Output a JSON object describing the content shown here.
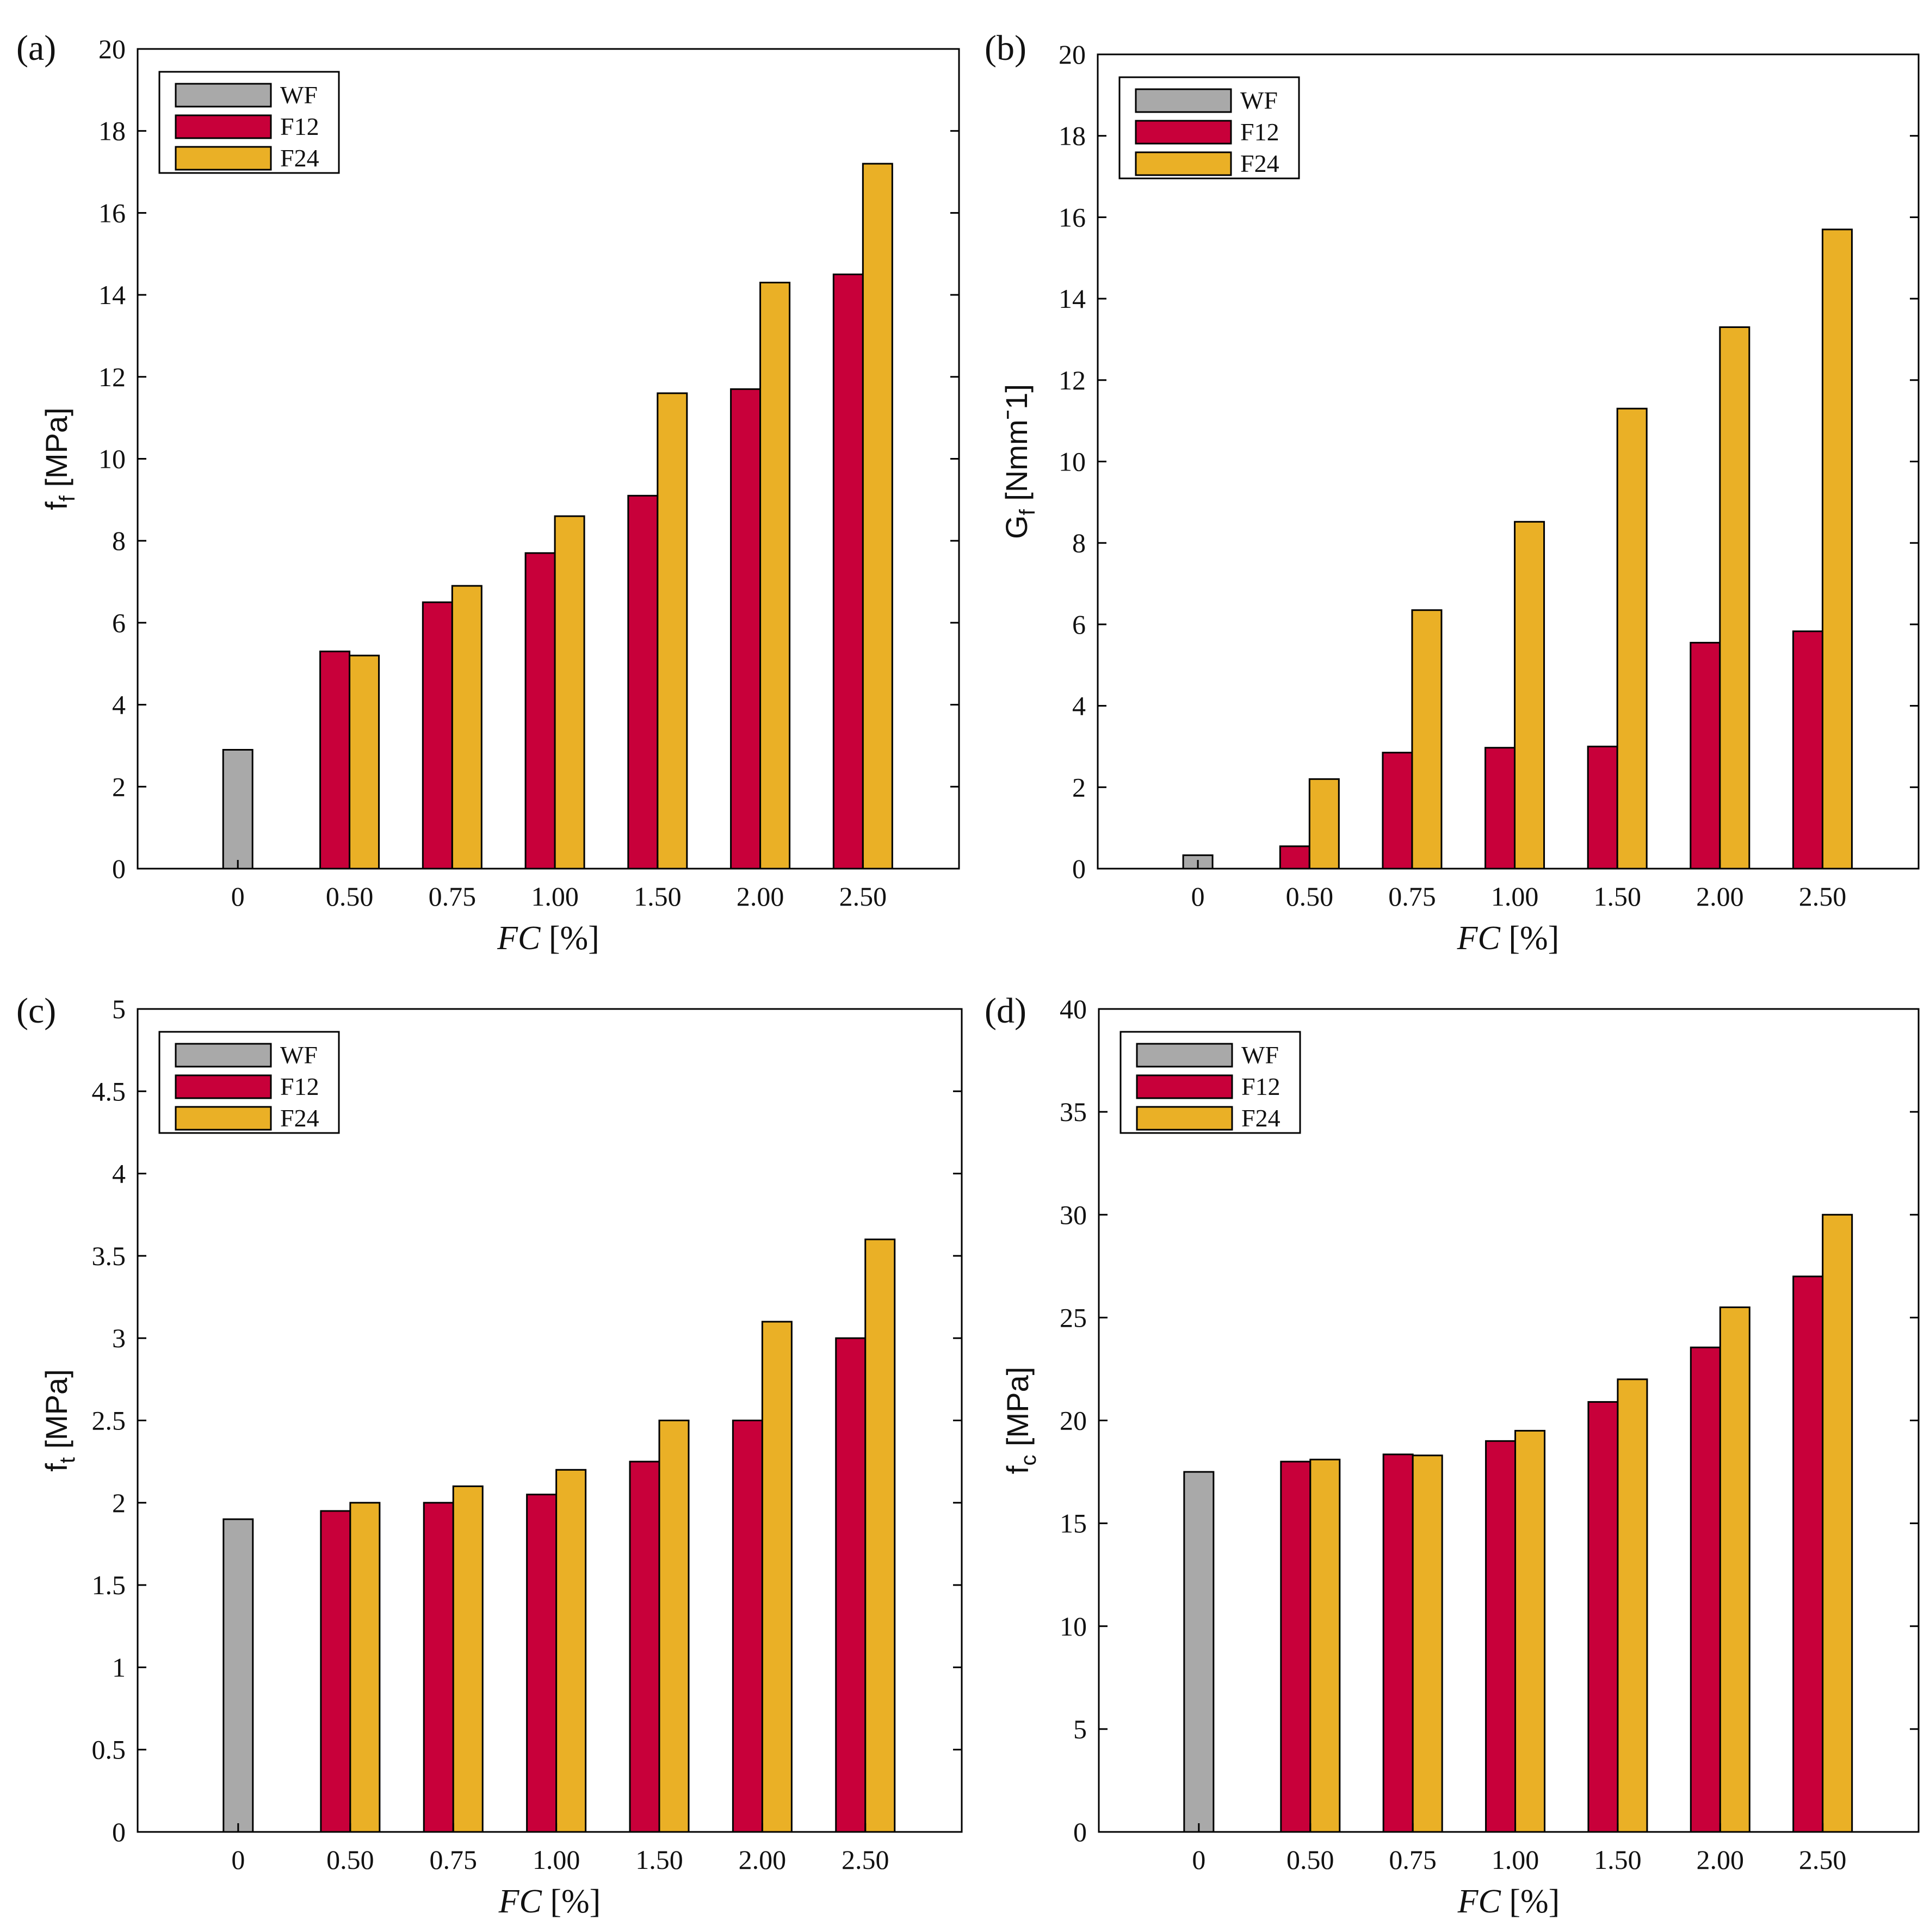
{
  "colors": {
    "WF": "#a9a9a9",
    "F12": "#c8003a",
    "F24": "#eab026"
  },
  "legend": [
    "WF",
    "F12",
    "F24"
  ],
  "chart_data": [
    {
      "type": "bar",
      "panel": "(a)",
      "ylabel": "f",
      "ylabel_sub": "f",
      "ylabel_unit": "[MPa]",
      "xlabel": "FC",
      "xlabel_unit": "[%]",
      "categories": [
        "0",
        "0.50",
        "0.75",
        "1.00",
        "1.50",
        "2.00",
        "2.50"
      ],
      "ylim": [
        0,
        20
      ],
      "yticks": [
        "0",
        "2",
        "4",
        "6",
        "8",
        "10",
        "12",
        "14",
        "16",
        "18",
        "20"
      ],
      "series": [
        {
          "name": "WF",
          "values": [
            2.9,
            null,
            null,
            null,
            null,
            null,
            null
          ]
        },
        {
          "name": "F12",
          "values": [
            null,
            5.3,
            6.5,
            7.7,
            9.1,
            11.7,
            14.5
          ]
        },
        {
          "name": "F24",
          "values": [
            null,
            5.2,
            6.9,
            8.6,
            11.6,
            14.3,
            17.2
          ]
        }
      ]
    },
    {
      "type": "bar",
      "panel": "(b)",
      "ylabel": "G",
      "ylabel_sub": "f",
      "ylabel_unit": "[Nmmˉ1]",
      "xlabel": "FC",
      "xlabel_unit": "[%]",
      "categories": [
        "0",
        "0.50",
        "0.75",
        "1.00",
        "1.50",
        "2.00",
        "2.50"
      ],
      "ylim": [
        0,
        20
      ],
      "yticks": [
        "0",
        "2",
        "4",
        "6",
        "8",
        "10",
        "12",
        "14",
        "16",
        "18",
        "20"
      ],
      "series": [
        {
          "name": "WF",
          "values": [
            0.33,
            null,
            null,
            null,
            null,
            null,
            null
          ]
        },
        {
          "name": "F12",
          "values": [
            null,
            0.55,
            2.85,
            2.97,
            3.0,
            5.55,
            5.83
          ]
        },
        {
          "name": "F24",
          "values": [
            null,
            2.2,
            6.35,
            8.52,
            11.3,
            13.3,
            15.7
          ]
        }
      ]
    },
    {
      "type": "bar",
      "panel": "(c)",
      "ylabel": "f",
      "ylabel_sub": "t",
      "ylabel_unit": "[MPa]",
      "xlabel": "FC",
      "xlabel_unit": "[%]",
      "categories": [
        "0",
        "0.50",
        "0.75",
        "1.00",
        "1.50",
        "2.00",
        "2.50"
      ],
      "ylim": [
        0,
        5
      ],
      "yticks": [
        "0",
        "0.5",
        "1",
        "1.5",
        "2",
        "2.5",
        "3",
        "3.5",
        "4",
        "4.5",
        "5"
      ],
      "series": [
        {
          "name": "WF",
          "values": [
            1.9,
            null,
            null,
            null,
            null,
            null,
            null
          ]
        },
        {
          "name": "F12",
          "values": [
            null,
            1.95,
            2.0,
            2.05,
            2.25,
            2.5,
            3.0
          ]
        },
        {
          "name": "F24",
          "values": [
            null,
            2.0,
            2.1,
            2.2,
            2.5,
            3.1,
            3.6
          ]
        }
      ]
    },
    {
      "type": "bar",
      "panel": "(d)",
      "ylabel": "f",
      "ylabel_sub": "c",
      "ylabel_unit": "[MPa]",
      "xlabel": "FC",
      "xlabel_unit": "[%]",
      "categories": [
        "0",
        "0.50",
        "0.75",
        "1.00",
        "1.50",
        "2.00",
        "2.50"
      ],
      "ylim": [
        0,
        40
      ],
      "yticks": [
        "0",
        "5",
        "10",
        "15",
        "20",
        "25",
        "30",
        "35",
        "40"
      ],
      "series": [
        {
          "name": "WF",
          "values": [
            17.5,
            null,
            null,
            null,
            null,
            null,
            null
          ]
        },
        {
          "name": "F12",
          "values": [
            null,
            18.0,
            18.35,
            19.0,
            20.9,
            23.55,
            27.0
          ]
        },
        {
          "name": "F24",
          "values": [
            null,
            18.1,
            18.3,
            19.5,
            22.0,
            25.5,
            30.0
          ]
        }
      ]
    }
  ]
}
